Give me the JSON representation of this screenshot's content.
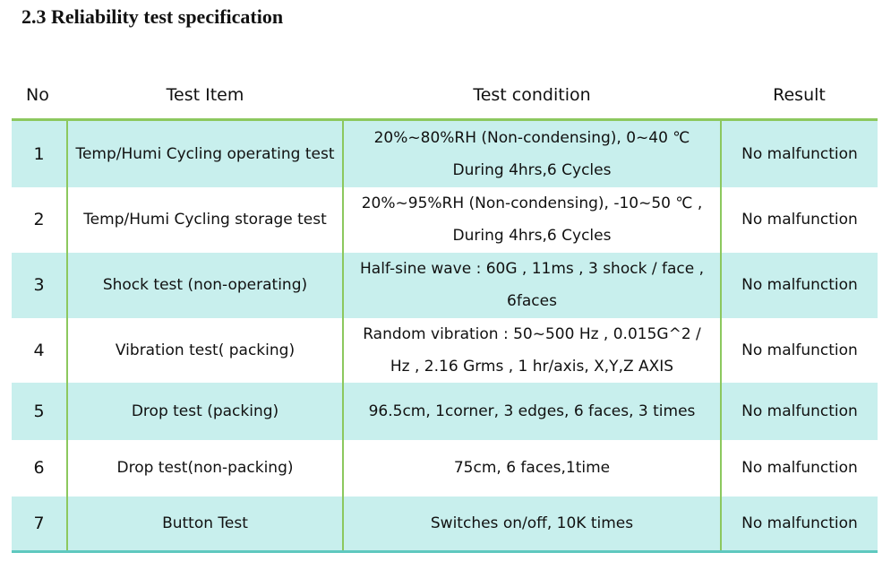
{
  "title": "2.3 Reliability test specification",
  "headers": [
    "No",
    "Test Item",
    "Test condition",
    "Result"
  ],
  "rows": [
    {
      "no": "1",
      "item": "Temp/Humi Cycling operating test",
      "condition": "20%~80%RH (Non-condensing), 0~40 ℃ During 4hrs,6 Cycles",
      "result": "No malfunction"
    },
    {
      "no": "2",
      "item": "Temp/Humi Cycling storage test",
      "condition": "20%~95%RH (Non-condensing), -10~50 ℃ , During 4hrs,6 Cycles",
      "result": "No malfunction"
    },
    {
      "no": "3",
      "item": "Shock test (non-operating)",
      "condition": "Half-sine wave : 60G , 11ms , 3 shock / face , 6faces",
      "result": "No malfunction"
    },
    {
      "no": "4",
      "item": "Vibration test( packing)",
      "condition": "Random vibration : 50~500 Hz , 0.015G^2 / Hz , 2.16 Grms , 1 hr/axis, X,Y,Z AXIS",
      "result": "No malfunction"
    },
    {
      "no": "5",
      "item": "Drop test (packing)",
      "condition": "96.5cm, 1corner, 3 edges, 6 faces, 3 times",
      "result": "No malfunction"
    },
    {
      "no": "6",
      "item": "Drop test(non-packing)",
      "condition": "75cm, 6 faces,1time",
      "result": "No malfunction"
    },
    {
      "no": "7",
      "item": "Button Test",
      "condition": "Switches on/off, 10K times",
      "result": "No malfunction"
    }
  ]
}
